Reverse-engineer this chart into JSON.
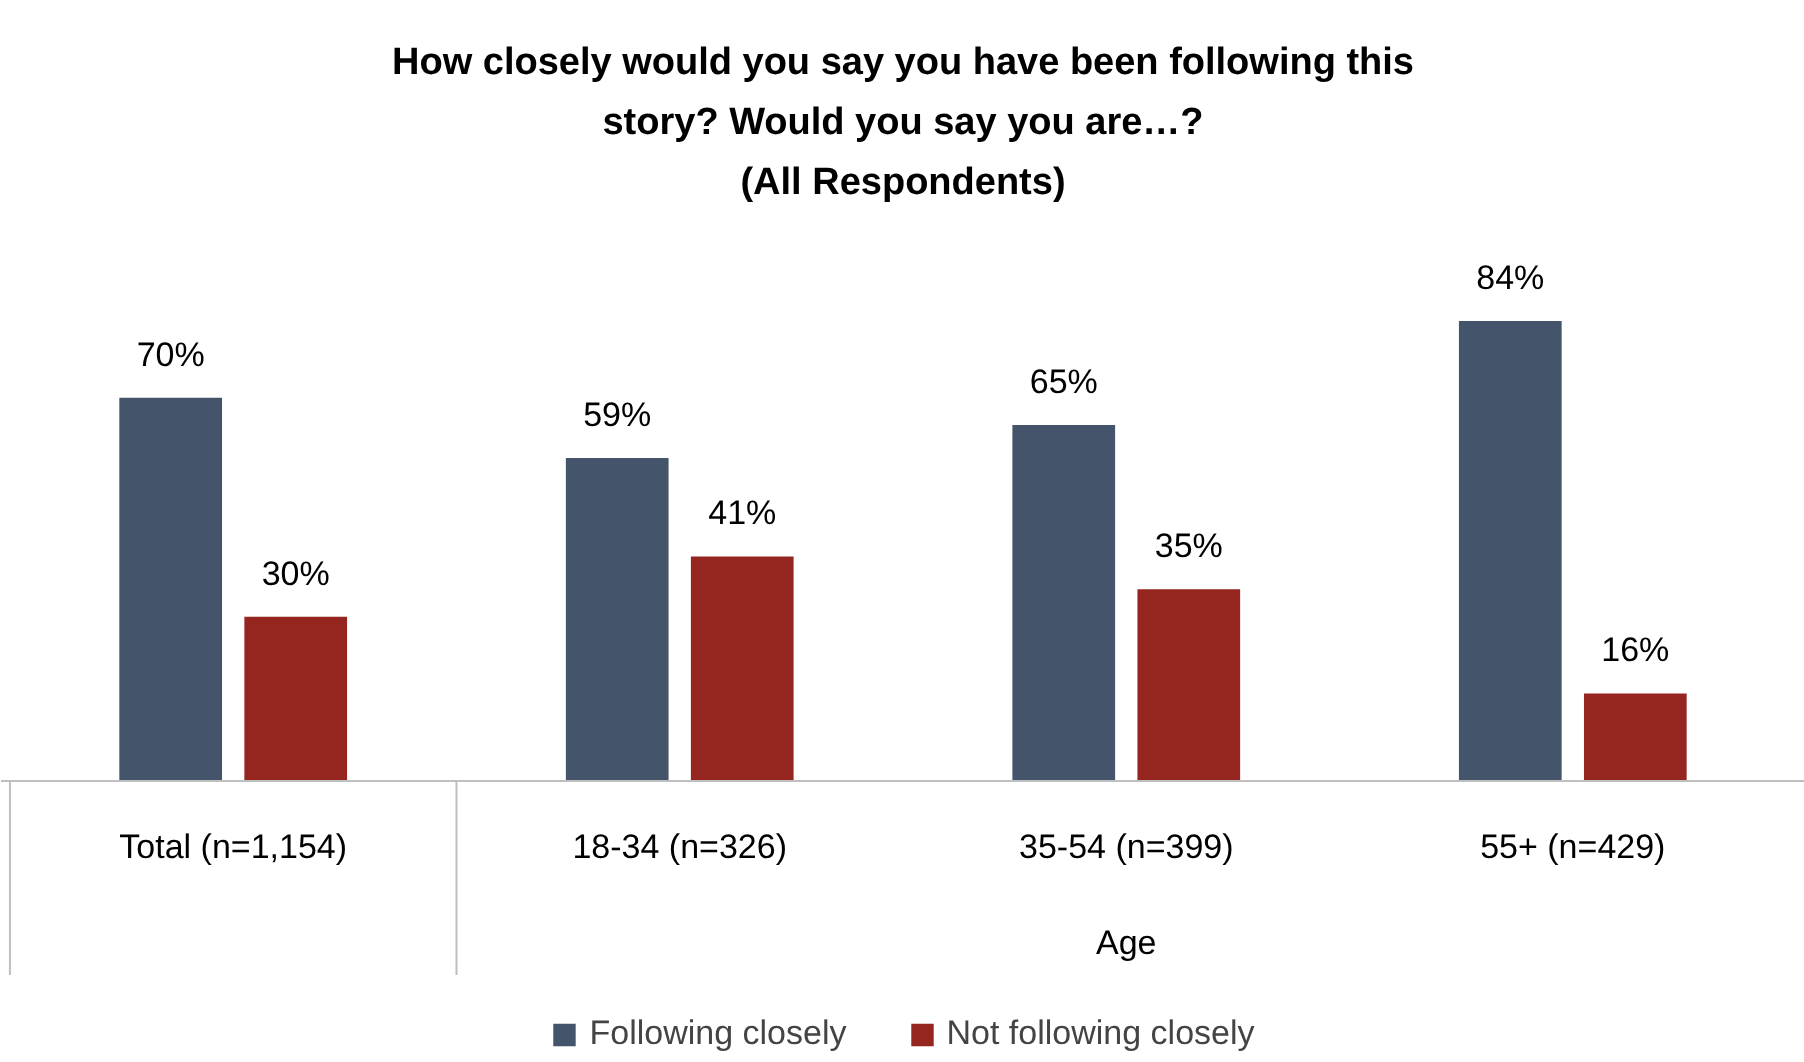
{
  "chart_data": {
    "type": "bar",
    "title": "How closely would you say you have been following this story? Would you say you are…?",
    "subtitle": "(All Respondents)",
    "categories": [
      "Total (n=1,154)",
      "18-34 (n=326)",
      "35-54 (n=399)",
      "55+ (n=429)"
    ],
    "series": [
      {
        "name": "Following closely",
        "color": "#44546a",
        "values": [
          70,
          59,
          65,
          84
        ],
        "value_labels": [
          "70%",
          "59%",
          "65%",
          "84%"
        ]
      },
      {
        "name": "Not following closely",
        "color": "#95261f",
        "values": [
          30,
          41,
          35,
          16
        ],
        "value_labels": [
          "30%",
          "41%",
          "35%",
          "16%"
        ]
      }
    ],
    "annotations": [
      "Age"
    ],
    "legend": "bottom"
  }
}
